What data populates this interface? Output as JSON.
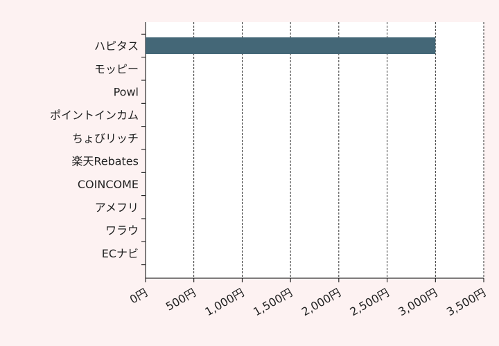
{
  "chart_data": {
    "type": "barh",
    "categories": [
      "ハピタス",
      "モッピー",
      "Powl",
      "ポイントインカム",
      "ちょびリッチ",
      "楽天Rebates",
      "COINCOME",
      "アメフリ",
      "ワラウ",
      "ECナビ"
    ],
    "values": [
      3000,
      0,
      0,
      0,
      0,
      0,
      0,
      0,
      0,
      0
    ],
    "color": "#446777",
    "xlim": [
      0,
      3500
    ],
    "xticks": [
      {
        "value": 0,
        "label": "0円"
      },
      {
        "value": 500,
        "label": "500円"
      },
      {
        "value": 1000,
        "label": "1,000円"
      },
      {
        "value": 1500,
        "label": "1,500円"
      },
      {
        "value": 2000,
        "label": "2,000円"
      },
      {
        "value": 2500,
        "label": "2,500円"
      },
      {
        "value": 3000,
        "label": "3,000円"
      },
      {
        "value": 3500,
        "label": "3,500円"
      }
    ],
    "grid": true
  }
}
